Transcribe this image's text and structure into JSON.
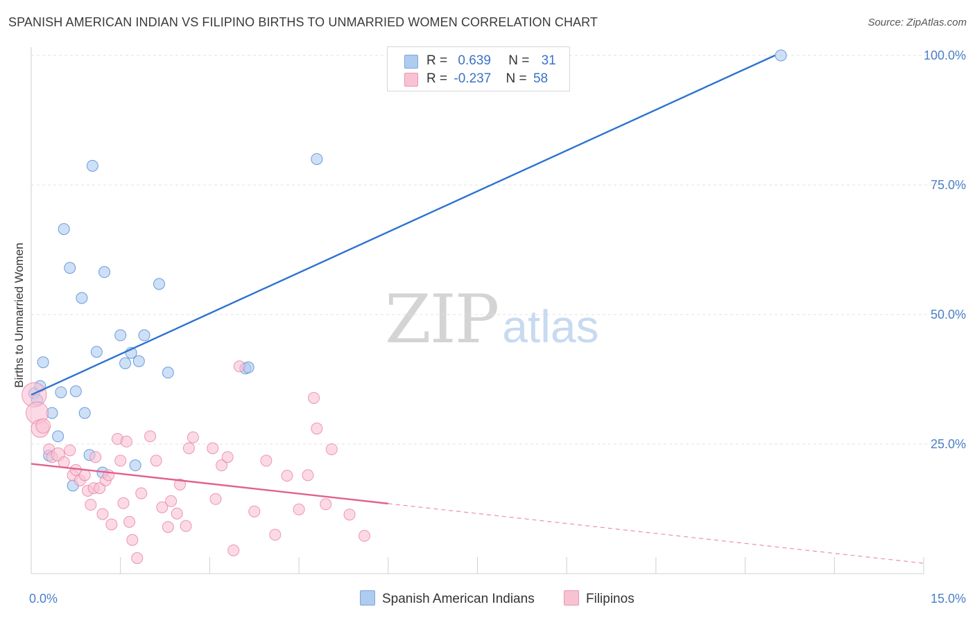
{
  "title": "SPANISH AMERICAN INDIAN VS FILIPINO BIRTHS TO UNMARRIED WOMEN CORRELATION CHART",
  "source": "Source: ZipAtlas.com",
  "watermark": {
    "zip": "ZIP",
    "atlas": "atlas"
  },
  "legend": {
    "rows": [
      {
        "r_label": "R =",
        "r_value": "0.639",
        "n_label": "N =",
        "n_value": "31",
        "color": "#aecbf0",
        "border": "#7ea6dc"
      },
      {
        "r_label": "R =",
        "r_value": "-0.237",
        "n_label": "N =",
        "n_value": "58",
        "color": "#f8c2d3",
        "border": "#e995b1"
      }
    ]
  },
  "bottom_legend": [
    {
      "label": "Spanish American Indians",
      "color": "#aecbf0",
      "border": "#7ea6dc"
    },
    {
      "label": "Filipinos",
      "color": "#f8c2d3",
      "border": "#e995b1"
    }
  ],
  "chart_data": {
    "type": "scatter",
    "title": "SPANISH AMERICAN INDIAN VS FILIPINO BIRTHS TO UNMARRIED WOMEN CORRELATION CHART",
    "xlabel": "",
    "ylabel": "Births to Unmarried Women",
    "xlim": [
      0,
      15
    ],
    "ylim": [
      0,
      103
    ],
    "x_tick_labels": [
      "0.0%",
      "15.0%"
    ],
    "y_ticks": [
      25,
      50,
      75,
      100
    ],
    "y_tick_labels": [
      "25.0%",
      "50.0%",
      "75.0%",
      "100.0%"
    ],
    "grid": true,
    "legend_position": "top-center",
    "series": [
      {
        "name": "Spanish American Indians",
        "color": "#4a86d4",
        "fill": "#aecbf0",
        "trend": {
          "x": [
            0,
            12.5
          ],
          "y": [
            34.5,
            100
          ],
          "color": "#2d72cf",
          "dashed_from": null
        },
        "points": [
          [
            0.05,
            34.8,
            1
          ],
          [
            0.1,
            33.5,
            1
          ],
          [
            0.15,
            36.2,
            1
          ],
          [
            0.2,
            40.8,
            1
          ],
          [
            0.35,
            31.0,
            1
          ],
          [
            0.45,
            26.5,
            1
          ],
          [
            0.3,
            22.8,
            1
          ],
          [
            0.5,
            35.0,
            1
          ],
          [
            0.55,
            66.5,
            1
          ],
          [
            0.65,
            59.0,
            1
          ],
          [
            0.7,
            17.0,
            1
          ],
          [
            0.75,
            35.2,
            1
          ],
          [
            0.85,
            53.2,
            1
          ],
          [
            0.9,
            31.0,
            1
          ],
          [
            0.98,
            22.9,
            1
          ],
          [
            1.03,
            78.7,
            1
          ],
          [
            1.1,
            42.8,
            1
          ],
          [
            1.2,
            19.5,
            1
          ],
          [
            1.23,
            58.2,
            1
          ],
          [
            1.5,
            46.0,
            1
          ],
          [
            1.58,
            40.6,
            1
          ],
          [
            1.68,
            42.6,
            1
          ],
          [
            1.75,
            20.9,
            1
          ],
          [
            1.81,
            41.0,
            1
          ],
          [
            1.9,
            46.0,
            1
          ],
          [
            2.15,
            55.9,
            1
          ],
          [
            2.3,
            38.8,
            1
          ],
          [
            3.6,
            39.6,
            1
          ],
          [
            3.65,
            39.8,
            1
          ],
          [
            4.8,
            80.0,
            1
          ],
          [
            12.6,
            100.0,
            1
          ]
        ]
      },
      {
        "name": "Filipinos",
        "color": "#e97ea2",
        "fill": "#f8c2d3",
        "trend": {
          "x": [
            0,
            15
          ],
          "y": [
            21.2,
            2.0
          ],
          "color": "#e0608e",
          "dashed_from": 6
        },
        "points": [
          [
            0.05,
            34.5,
            2.2
          ],
          [
            0.1,
            31.0,
            2.0
          ],
          [
            0.15,
            28.0,
            1.6
          ],
          [
            0.2,
            28.5,
            1.3
          ],
          [
            0.3,
            24.0,
            1
          ],
          [
            0.35,
            22.5,
            1
          ],
          [
            0.45,
            23.0,
            1.2
          ],
          [
            0.55,
            21.5,
            1
          ],
          [
            0.65,
            23.8,
            1
          ],
          [
            0.7,
            19.0,
            1
          ],
          [
            0.75,
            20.0,
            1
          ],
          [
            0.82,
            18.0,
            1
          ],
          [
            0.9,
            19.0,
            1
          ],
          [
            0.95,
            16.0,
            1
          ],
          [
            1.0,
            13.3,
            1
          ],
          [
            1.05,
            16.5,
            1
          ],
          [
            1.08,
            22.5,
            1
          ],
          [
            1.15,
            16.5,
            1
          ],
          [
            1.2,
            11.5,
            1
          ],
          [
            1.25,
            18.0,
            1
          ],
          [
            1.3,
            19.0,
            1
          ],
          [
            1.35,
            9.5,
            1
          ],
          [
            1.45,
            26.0,
            1
          ],
          [
            1.5,
            21.8,
            1
          ],
          [
            1.55,
            13.6,
            1
          ],
          [
            1.6,
            25.5,
            1
          ],
          [
            1.65,
            10.0,
            1
          ],
          [
            1.7,
            6.5,
            1
          ],
          [
            1.78,
            3.0,
            1
          ],
          [
            1.85,
            15.5,
            1
          ],
          [
            2.0,
            26.5,
            1
          ],
          [
            2.1,
            21.8,
            1
          ],
          [
            2.2,
            12.8,
            1
          ],
          [
            2.3,
            9.0,
            1
          ],
          [
            2.35,
            14.0,
            1
          ],
          [
            2.45,
            11.6,
            1
          ],
          [
            2.5,
            17.2,
            1
          ],
          [
            2.6,
            9.2,
            1
          ],
          [
            2.65,
            24.2,
            1
          ],
          [
            2.72,
            26.3,
            1
          ],
          [
            3.05,
            24.2,
            1
          ],
          [
            3.1,
            14.4,
            1
          ],
          [
            3.2,
            20.9,
            1
          ],
          [
            3.3,
            22.5,
            1
          ],
          [
            3.4,
            4.5,
            1
          ],
          [
            3.5,
            40.0,
            1
          ],
          [
            3.75,
            12.0,
            1
          ],
          [
            3.95,
            21.8,
            1
          ],
          [
            4.1,
            7.5,
            1
          ],
          [
            4.3,
            18.9,
            1
          ],
          [
            4.5,
            12.4,
            1
          ],
          [
            4.65,
            19.0,
            1
          ],
          [
            4.75,
            33.9,
            1
          ],
          [
            4.8,
            28.0,
            1
          ],
          [
            4.95,
            13.4,
            1
          ],
          [
            5.05,
            24.0,
            1
          ],
          [
            5.35,
            11.4,
            1
          ],
          [
            5.6,
            7.3,
            1
          ]
        ]
      }
    ]
  }
}
